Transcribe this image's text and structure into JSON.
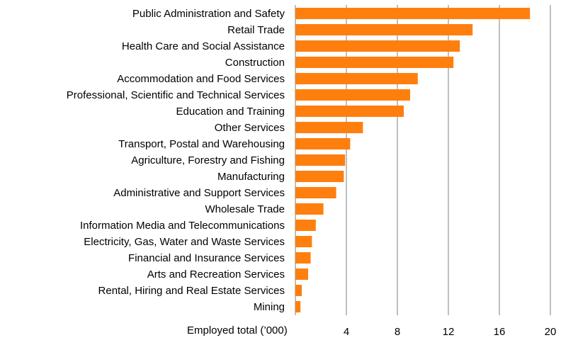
{
  "chart_data": {
    "type": "bar",
    "orientation": "horizontal",
    "categories": [
      "Public Administration and Safety",
      "Retail Trade",
      "Health Care and Social Assistance",
      "Construction",
      "Accommodation and Food Services",
      "Professional, Scientific and Technical Services",
      "Education and Training",
      "Other Services",
      "Transport, Postal and Warehousing",
      "Agriculture, Forestry and Fishing",
      "Manufacturing",
      "Administrative and Support Services",
      "Wholesale Trade",
      "Information Media and Telecommunications",
      "Electricity, Gas, Water and Waste Services",
      "Financial and Insurance Services",
      "Arts and Recreation Services",
      "Rental, Hiring and Real Estate Services",
      "Mining"
    ],
    "values": [
      18.4,
      13.9,
      12.9,
      12.4,
      9.6,
      9.0,
      8.5,
      5.3,
      4.3,
      3.9,
      3.8,
      3.2,
      2.2,
      1.6,
      1.3,
      1.2,
      1.0,
      0.5,
      0.4
    ],
    "title": "",
    "xlabel": "Employed total (’000)",
    "ylabel": "",
    "xlim": [
      0,
      20
    ],
    "xticks": [
      4,
      8,
      12,
      16,
      20
    ],
    "grid": "vertical",
    "legend": "none",
    "bar_color": "#FF7F0E",
    "gridline_color": "#808080"
  }
}
